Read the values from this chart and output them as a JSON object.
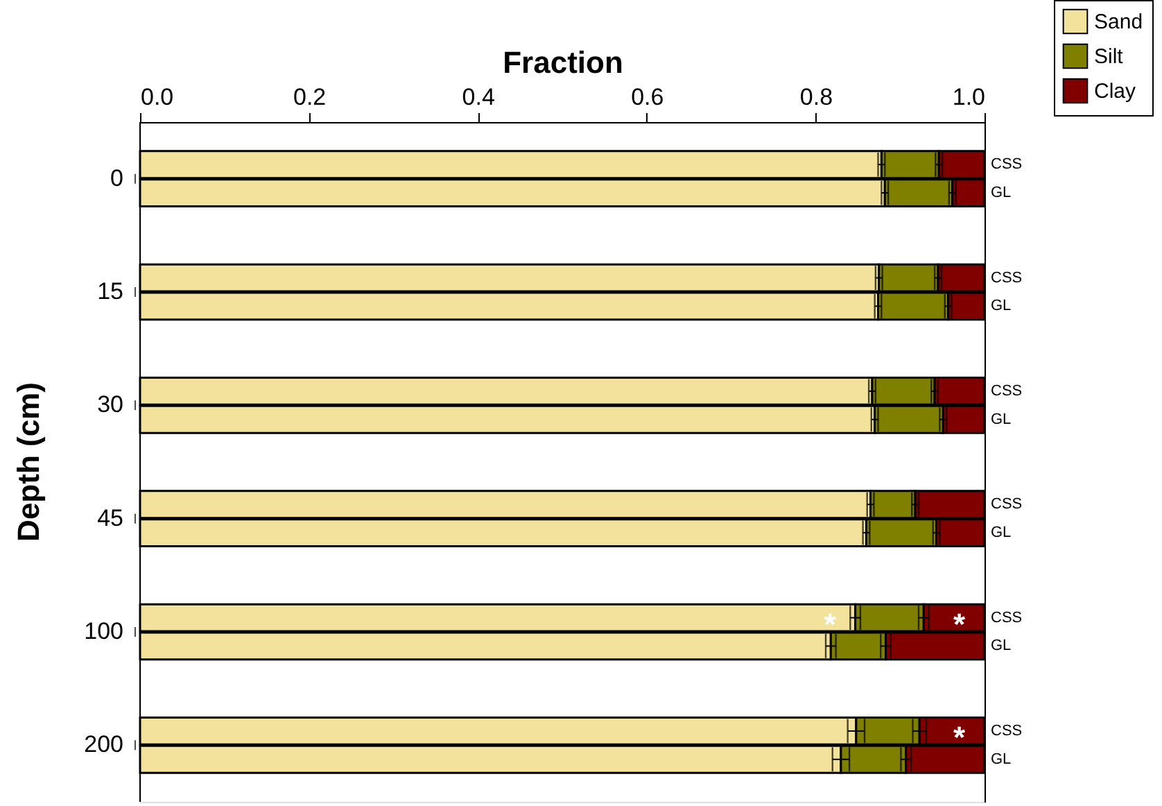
{
  "chart_data": {
    "type": "bar",
    "orientation": "horizontal",
    "stacked": true,
    "xlabel": "Fraction",
    "ylabel": "Depth (cm)",
    "categories": [
      "CSS",
      "GL",
      "CSS",
      "GL",
      "CSS",
      "GL",
      "CSS",
      "GL",
      "CSS",
      "GL",
      "CSS",
      "GL"
    ],
    "xlim": [
      0,
      1
    ],
    "xticks": [
      {
        "value": 0,
        "label": "0.0"
      },
      {
        "value": 0.2,
        "label": "0.2"
      },
      {
        "value": 0.4,
        "label": "0.4"
      },
      {
        "value": 0.6,
        "label": "0.6"
      },
      {
        "value": 0.8,
        "label": "0.8"
      },
      {
        "value": 1,
        "label": "1.0"
      }
    ],
    "series": [
      {
        "name": "Sand",
        "color": "#f2e29c",
        "values": [
          0.878,
          0.882,
          0.875,
          0.874,
          0.867,
          0.87,
          0.865,
          0.86,
          0.847,
          0.818,
          0.848,
          0.83
        ],
        "errors": [
          0.004,
          0.004,
          0.004,
          0.004,
          0.004,
          0.004,
          0.004,
          0.004,
          0.006,
          0.006,
          0.01,
          0.01
        ],
        "value_labels": [
          null,
          null,
          null,
          null,
          null,
          null,
          null,
          null,
          "*",
          null,
          null,
          null
        ]
      },
      {
        "name": "Silt",
        "color": "#808000",
        "values": [
          0.068,
          0.08,
          0.07,
          0.083,
          0.074,
          0.081,
          0.053,
          0.083,
          0.081,
          0.065,
          0.075,
          0.077
        ],
        "errors": [
          0.004,
          0.004,
          0.004,
          0.004,
          0.004,
          0.004,
          0.004,
          0.004,
          0.006,
          0.006,
          0.008,
          0.006
        ]
      },
      {
        "name": "Clay",
        "color": "#800000",
        "values": [
          0.054,
          0.038,
          0.055,
          0.043,
          0.059,
          0.049,
          0.082,
          0.057,
          0.072,
          0.117,
          0.077,
          0.093
        ],
        "value_labels": [
          null,
          null,
          null,
          null,
          null,
          null,
          null,
          null,
          "*",
          null,
          "*",
          null
        ]
      }
    ],
    "legend": "top right",
    "annotations": [
      "0",
      "15",
      "30",
      "45",
      "100",
      "200"
    ]
  }
}
